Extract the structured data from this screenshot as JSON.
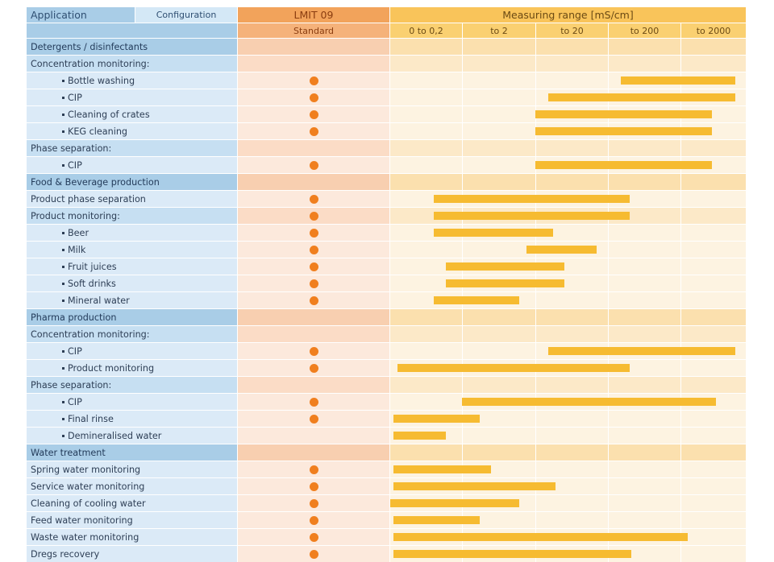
{
  "header": {
    "application": "Application",
    "configuration": "Configuration",
    "product": "LMIT 09",
    "variant": "Standard",
    "measuring_range": "Measuring range [mS/cm]",
    "range_columns": [
      "0 to 0,2",
      "to 2",
      "to 20",
      "to 200",
      "to 2000"
    ]
  },
  "colors": {
    "marker": "#f07f1e",
    "bar": "#f6bb31",
    "application_header": "#a9cde7",
    "lmit_header": "#f2a35b",
    "range_header": "#f9c45a"
  },
  "chart_data": {
    "type": "table",
    "x_scale": "log",
    "x_unit": "mS/cm",
    "range_boundaries": [
      0.02,
      0.2,
      2,
      20,
      200,
      2000
    ],
    "rows": [
      {
        "label": "Detergents / disinfectants",
        "kind": "section",
        "indent": false,
        "marker": false,
        "range": null
      },
      {
        "label": "Concentration monitoring:",
        "kind": "group",
        "indent": false,
        "marker": false,
        "range": null
      },
      {
        "label": "Bottle washing",
        "kind": "item",
        "indent": true,
        "marker": true,
        "range": [
          30,
          1400
        ]
      },
      {
        "label": "CIP",
        "kind": "item",
        "indent": true,
        "marker": true,
        "range": [
          3,
          1400
        ]
      },
      {
        "label": "Cleaning of crates",
        "kind": "item",
        "indent": true,
        "marker": true,
        "range": [
          2,
          600
        ]
      },
      {
        "label": "KEG cleaning",
        "kind": "item",
        "indent": true,
        "marker": true,
        "range": [
          2,
          600
        ]
      },
      {
        "label": "Phase separation:",
        "kind": "group",
        "indent": false,
        "marker": false,
        "range": null
      },
      {
        "label": "CIP",
        "kind": "item",
        "indent": true,
        "marker": true,
        "range": [
          2,
          600
        ]
      },
      {
        "label": "Food & Beverage production",
        "kind": "section",
        "indent": false,
        "marker": false,
        "range": null
      },
      {
        "label": "Product phase separation",
        "kind": "item",
        "indent": false,
        "marker": true,
        "range": [
          0.08,
          40
        ]
      },
      {
        "label": "Product monitoring:",
        "kind": "group",
        "indent": false,
        "marker": true,
        "range": [
          0.08,
          40
        ]
      },
      {
        "label": "Beer",
        "kind": "item",
        "indent": true,
        "marker": true,
        "range": [
          0.08,
          3.5
        ]
      },
      {
        "label": "Milk",
        "kind": "item",
        "indent": true,
        "marker": true,
        "range": [
          1.5,
          14
        ]
      },
      {
        "label": "Fruit juices",
        "kind": "item",
        "indent": true,
        "marker": true,
        "range": [
          0.12,
          5
        ]
      },
      {
        "label": "Soft drinks",
        "kind": "item",
        "indent": true,
        "marker": true,
        "range": [
          0.12,
          5
        ]
      },
      {
        "label": "Mineral water",
        "kind": "item",
        "indent": true,
        "marker": true,
        "range": [
          0.08,
          1.2
        ]
      },
      {
        "label": "Pharma production",
        "kind": "section",
        "indent": false,
        "marker": false,
        "range": null
      },
      {
        "label": "Concentration monitoring:",
        "kind": "group",
        "indent": false,
        "marker": false,
        "range": null
      },
      {
        "label": "CIP",
        "kind": "item",
        "indent": true,
        "marker": true,
        "range": [
          3,
          1400
        ]
      },
      {
        "label": "Product monitoring",
        "kind": "item",
        "indent": true,
        "marker": true,
        "range": [
          0.025,
          40
        ]
      },
      {
        "label": "Phase separation:",
        "kind": "group",
        "indent": false,
        "marker": false,
        "range": null
      },
      {
        "label": "CIP",
        "kind": "item",
        "indent": true,
        "marker": true,
        "range": [
          0.2,
          700
        ]
      },
      {
        "label": "Final rinse",
        "kind": "item",
        "indent": true,
        "marker": true,
        "range": [
          0.022,
          0.35
        ]
      },
      {
        "label": "Demineralised water",
        "kind": "item",
        "indent": true,
        "marker": false,
        "range": [
          0.022,
          0.12
        ]
      },
      {
        "label": "Water treatment",
        "kind": "section",
        "indent": false,
        "marker": false,
        "range": null
      },
      {
        "label": "Spring water monitoring",
        "kind": "item",
        "indent": false,
        "marker": true,
        "range": [
          0.022,
          0.5
        ]
      },
      {
        "label": "Service water monitoring",
        "kind": "item",
        "indent": false,
        "marker": true,
        "range": [
          0.022,
          3.8
        ]
      },
      {
        "label": "Cleaning of cooling water",
        "kind": "item",
        "indent": false,
        "marker": true,
        "range": [
          0.02,
          1.2
        ]
      },
      {
        "label": "Feed water monitoring",
        "kind": "item",
        "indent": false,
        "marker": true,
        "range": [
          0.022,
          0.35
        ]
      },
      {
        "label": "Waste water monitoring",
        "kind": "item",
        "indent": false,
        "marker": true,
        "range": [
          0.022,
          260
        ]
      },
      {
        "label": "Dregs recovery",
        "kind": "item",
        "indent": false,
        "marker": true,
        "range": [
          0.022,
          42
        ]
      }
    ]
  }
}
